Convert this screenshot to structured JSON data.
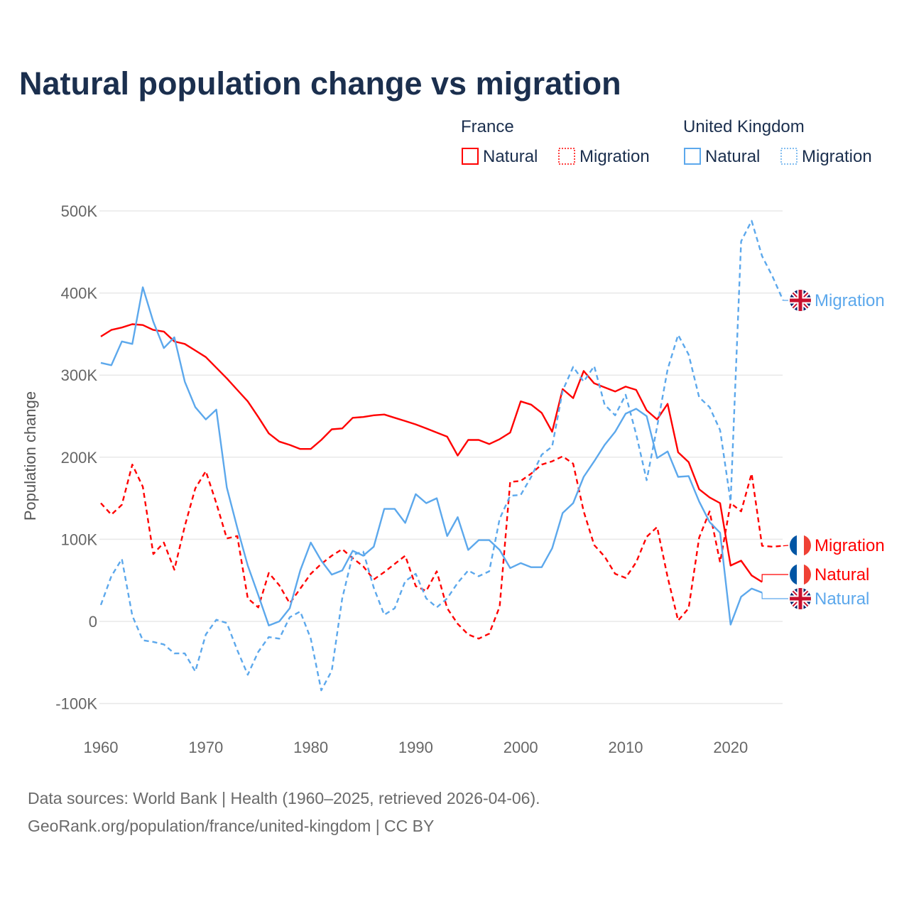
{
  "chart_data": {
    "type": "line",
    "title": "Natural population change vs migration",
    "ylabel": "Population change",
    "xlabel": "",
    "ylim": [
      -100000,
      500000
    ],
    "xlim": [
      1960,
      2025
    ],
    "y_ticks": [
      -100000,
      0,
      100000,
      200000,
      300000,
      400000,
      500000
    ],
    "y_tick_labels": [
      "-100K",
      "0",
      "100K",
      "200K",
      "300K",
      "400K",
      "500K"
    ],
    "x_ticks": [
      1960,
      1970,
      1980,
      1990,
      2000,
      2010,
      2020
    ],
    "x_tick_labels": [
      "1960",
      "1970",
      "1980",
      "1990",
      "2000",
      "2010",
      "2020"
    ],
    "grid": true,
    "legend": {
      "placement": "top-right",
      "groups": [
        {
          "name": "France",
          "items": [
            "Natural",
            "Migration"
          ]
        },
        {
          "name": "United Kingdom",
          "items": [
            "Natural",
            "Migration"
          ]
        }
      ]
    },
    "colors": {
      "france": "#ff0000",
      "uk": "#5ca8ec"
    },
    "series": [
      {
        "name": "France Natural",
        "country": "France",
        "kind": "Natural",
        "style": "solid",
        "start_year": 1960,
        "values": [
          347,
          355,
          358,
          362,
          361,
          355,
          353,
          341,
          338,
          330,
          322,
          309,
          296,
          282,
          268,
          249,
          229,
          219,
          215,
          210,
          210,
          221,
          234,
          235,
          248,
          249,
          251,
          252,
          248,
          244,
          240,
          235,
          230,
          225,
          202,
          221,
          221,
          216,
          222,
          230,
          268,
          264,
          254,
          231,
          283,
          272,
          305,
          290,
          285,
          280,
          286,
          282,
          257,
          246,
          265,
          206,
          194,
          161,
          151,
          144,
          68,
          74,
          56,
          48
        ]
      },
      {
        "name": "France Migration",
        "country": "France",
        "kind": "Migration",
        "style": "dashed",
        "start_year": 1960,
        "values": [
          144,
          130,
          142,
          191,
          164,
          82,
          96,
          63,
          116,
          162,
          183,
          144,
          101,
          104,
          28,
          17,
          59,
          44,
          22,
          40,
          58,
          70,
          80,
          88,
          77,
          67,
          51,
          60,
          70,
          80,
          43,
          37,
          61,
          16,
          -3,
          -16,
          -21,
          -15,
          18,
          170,
          171,
          180,
          191,
          195,
          201,
          192,
          134,
          93,
          79,
          58,
          53,
          72,
          103,
          115,
          54,
          1,
          16,
          102,
          134,
          72,
          144,
          134,
          180,
          92,
          91,
          92
        ]
      },
      {
        "name": "United Kingdom Natural",
        "country": "United Kingdom",
        "kind": "Natural",
        "style": "solid",
        "start_year": 1960,
        "values": [
          315,
          312,
          341,
          338,
          407,
          365,
          333,
          346,
          292,
          261,
          246,
          258,
          163,
          114,
          68,
          32,
          -5,
          0,
          16,
          62,
          96,
          74,
          57,
          62,
          86,
          80,
          91,
          137,
          137,
          120,
          155,
          144,
          150,
          104,
          127,
          87,
          99,
          99,
          87,
          65,
          71,
          66,
          66,
          89,
          132,
          144,
          176,
          195,
          215,
          231,
          253,
          259,
          250,
          199,
          207,
          176,
          177,
          146,
          121,
          108,
          -4,
          30,
          40,
          35
        ]
      },
      {
        "name": "United Kingdom Migration",
        "country": "United Kingdom",
        "kind": "Migration",
        "style": "dashed",
        "start_year": 1960,
        "values": [
          20,
          55,
          76,
          7,
          -23,
          -25,
          -28,
          -39,
          -39,
          -61,
          -16,
          2,
          -2,
          -35,
          -65,
          -37,
          -19,
          -21,
          5,
          12,
          -21,
          -84,
          -60,
          28,
          81,
          85,
          41,
          8,
          16,
          49,
          58,
          28,
          17,
          28,
          47,
          62,
          55,
          61,
          125,
          153,
          154,
          176,
          203,
          213,
          281,
          310,
          292,
          311,
          264,
          251,
          276,
          228,
          172,
          237,
          307,
          349,
          325,
          273,
          261,
          233,
          146,
          463,
          488,
          445,
          420,
          391
        ]
      }
    ],
    "value_unit": "thousands",
    "end_labels": [
      {
        "series": "United Kingdom Migration",
        "text": "Migration",
        "flag": "uk-flag-icon"
      },
      {
        "series": "France Migration",
        "text": "Migration",
        "flag": "france-flag-icon"
      },
      {
        "series": "France Natural",
        "text": "Natural",
        "flag": "france-flag-icon"
      },
      {
        "series": "United Kingdom Natural",
        "text": "Natural",
        "flag": "uk-flag-icon"
      }
    ]
  },
  "footer": {
    "line1": "Data sources: World Bank | Health (1960–2025, retrieved 2026-04-06).",
    "line2": "GeoRank.org/population/france/united-kingdom | CC BY"
  }
}
